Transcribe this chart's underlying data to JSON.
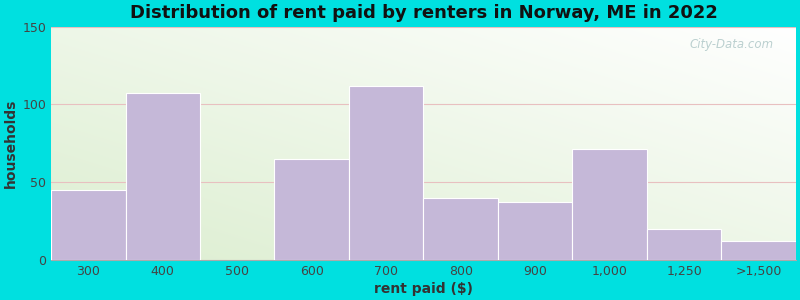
{
  "categories": [
    "300",
    "400",
    "500",
    "600",
    "700",
    "800",
    "900",
    "1,000",
    "1,250",
    ">1,500"
  ],
  "values": [
    45,
    107,
    0,
    65,
    112,
    40,
    37,
    71,
    20,
    12
  ],
  "bar_color": "#c5b8d8",
  "bar_edgecolor": "#c5b8d8",
  "title": "Distribution of rent paid by renters in Norway, ME in 2022",
  "xlabel": "rent paid ($)",
  "ylabel": "households",
  "ylim": [
    0,
    150
  ],
  "yticks": [
    0,
    50,
    100,
    150
  ],
  "title_fontsize": 13,
  "axis_label_fontsize": 10,
  "tick_fontsize": 9,
  "bg_outer": "#00e0e0",
  "bg_plot_top_left": "#d8ecd0",
  "bg_plot_bottom_right": "#ffffff",
  "watermark_text": "City-Data.com",
  "watermark_color": "#b0c8c8"
}
